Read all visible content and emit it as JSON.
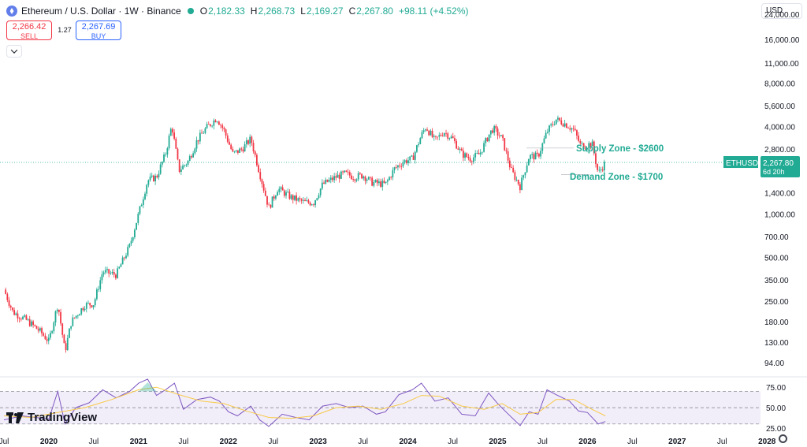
{
  "header": {
    "title": "Ethereum / U.S. Dollar · 1W · Binance",
    "open_label": "O",
    "open": "2,182.33",
    "high_label": "H",
    "high": "2,268.73",
    "low_label": "L",
    "low": "2,169.27",
    "close_label": "C",
    "close": "2,267.80",
    "change": "+98.11 (+4.52%)"
  },
  "trade": {
    "sell_price": "2,266.42",
    "sell_label": "SELL",
    "spread": "1.27",
    "buy_price": "2,267.69",
    "buy_label": "BUY"
  },
  "currency": "USD",
  "brand": "TradingView",
  "colors": {
    "up": "#22ab94",
    "down": "#f23645",
    "rsi": "#7e57c2",
    "rsi_ma": "#f7c948",
    "accent": "#22ab94"
  },
  "icons": {
    "logo": "ethereum-logo-icon",
    "dot": "status-dot-icon",
    "collapse": "chevron-down-icon",
    "settings": "gear-icon"
  },
  "chart_data": [
    {
      "type": "candlestick",
      "title": "Ethereum / U.S. Dollar · 1W · Binance",
      "scale": "log",
      "ylim": [
        75,
        30000
      ],
      "y_ticks": [
        24000,
        16000,
        11000,
        8000,
        5600,
        4000,
        2800,
        1400,
        1000,
        700,
        500,
        350,
        250,
        180,
        130,
        94
      ],
      "y_tick_labels": [
        "24,000.00",
        "16,000.00",
        "11,000.00",
        "8,000.00",
        "5,600.00",
        "4,000.00",
        "2,800.00",
        "1,400.00",
        "1,000.00",
        "700.00",
        "500.00",
        "350.00",
        "250.00",
        "180.00",
        "130.00",
        "94.00"
      ],
      "x_ticks": [
        "Jul",
        "2020",
        "Jul",
        "2021",
        "Jul",
        "2022",
        "Jul",
        "2023",
        "Jul",
        "2024",
        "Jul",
        "2025",
        "Jul",
        "2026",
        "Jul",
        "2027",
        "Jul",
        "2028"
      ],
      "xlim": [
        2019.5,
        2028.2
      ],
      "price_path": [
        [
          2019.5,
          300
        ],
        [
          2019.6,
          210
        ],
        [
          2019.75,
          185
        ],
        [
          2019.9,
          155
        ],
        [
          2020.0,
          132
        ],
        [
          2020.1,
          240
        ],
        [
          2020.18,
          112
        ],
        [
          2020.25,
          180
        ],
        [
          2020.4,
          235
        ],
        [
          2020.5,
          240
        ],
        [
          2020.6,
          400
        ],
        [
          2020.75,
          380
        ],
        [
          2020.9,
          600
        ],
        [
          2021.0,
          1000
        ],
        [
          2021.1,
          1700
        ],
        [
          2021.2,
          1800
        ],
        [
          2021.3,
          2600
        ],
        [
          2021.37,
          4100
        ],
        [
          2021.45,
          2000
        ],
        [
          2021.55,
          2300
        ],
        [
          2021.65,
          3200
        ],
        [
          2021.75,
          3900
        ],
        [
          2021.87,
          4600
        ],
        [
          2021.95,
          3800
        ],
        [
          2022.05,
          2600
        ],
        [
          2022.15,
          2800
        ],
        [
          2022.25,
          3300
        ],
        [
          2022.35,
          1900
        ],
        [
          2022.45,
          1100
        ],
        [
          2022.55,
          1500
        ],
        [
          2022.7,
          1300
        ],
        [
          2022.85,
          1200
        ],
        [
          2022.95,
          1200
        ],
        [
          2023.05,
          1600
        ],
        [
          2023.2,
          1800
        ],
        [
          2023.3,
          1900
        ],
        [
          2023.4,
          1800
        ],
        [
          2023.5,
          1850
        ],
        [
          2023.6,
          1650
        ],
        [
          2023.75,
          1600
        ],
        [
          2023.85,
          2050
        ],
        [
          2023.95,
          2300
        ],
        [
          2024.05,
          2400
        ],
        [
          2024.15,
          3500
        ],
        [
          2024.2,
          4000
        ],
        [
          2024.3,
          3200
        ],
        [
          2024.4,
          3700
        ],
        [
          2024.5,
          3300
        ],
        [
          2024.6,
          2600
        ],
        [
          2024.7,
          2400
        ],
        [
          2024.8,
          2600
        ],
        [
          2024.9,
          3500
        ],
        [
          2024.95,
          3900
        ],
        [
          2025.05,
          3300
        ],
        [
          2025.15,
          2000
        ],
        [
          2025.25,
          1550
        ],
        [
          2025.35,
          2500
        ],
        [
          2025.45,
          2500
        ],
        [
          2025.55,
          3700
        ],
        [
          2025.65,
          4500
        ],
        [
          2025.75,
          4200
        ],
        [
          2025.85,
          3800
        ],
        [
          2025.92,
          3000
        ],
        [
          2025.98,
          2950
        ],
        [
          2026.05,
          3100
        ],
        [
          2026.12,
          1900
        ],
        [
          2026.2,
          2267.8
        ]
      ],
      "last_price_label": {
        "symbol": "ETHUSD",
        "price": "2,267.80",
        "countdown": "6d 20h"
      },
      "annotations": [
        {
          "text": "Supply Zone - $2600",
          "price": 2600
        },
        {
          "text": "Demand Zone - $1700",
          "price": 1700
        }
      ]
    },
    {
      "type": "line",
      "name": "RSI",
      "ylim": [
        25,
        82
      ],
      "y_ticks": [
        75,
        50,
        25
      ],
      "y_tick_labels": [
        "75.00",
        "50.00",
        "25.00"
      ],
      "band": [
        30,
        70
      ],
      "rsi_path": [
        [
          2019.5,
          35
        ],
        [
          2019.7,
          40
        ],
        [
          2019.85,
          38
        ],
        [
          2020.0,
          36
        ],
        [
          2020.1,
          70
        ],
        [
          2020.18,
          30
        ],
        [
          2020.3,
          50
        ],
        [
          2020.45,
          56
        ],
        [
          2020.6,
          72
        ],
        [
          2020.75,
          62
        ],
        [
          2020.9,
          70
        ],
        [
          2021.0,
          80
        ],
        [
          2021.1,
          85
        ],
        [
          2021.2,
          65
        ],
        [
          2021.3,
          72
        ],
        [
          2021.4,
          80
        ],
        [
          2021.5,
          48
        ],
        [
          2021.65,
          60
        ],
        [
          2021.8,
          63
        ],
        [
          2021.9,
          58
        ],
        [
          2022.0,
          45
        ],
        [
          2022.1,
          40
        ],
        [
          2022.25,
          52
        ],
        [
          2022.35,
          35
        ],
        [
          2022.45,
          27
        ],
        [
          2022.6,
          42
        ],
        [
          2022.75,
          38
        ],
        [
          2022.9,
          35
        ],
        [
          2023.05,
          52
        ],
        [
          2023.2,
          55
        ],
        [
          2023.35,
          50
        ],
        [
          2023.5,
          52
        ],
        [
          2023.65,
          42
        ],
        [
          2023.75,
          45
        ],
        [
          2023.9,
          66
        ],
        [
          2024.05,
          72
        ],
        [
          2024.15,
          80
        ],
        [
          2024.3,
          58
        ],
        [
          2024.45,
          62
        ],
        [
          2024.6,
          42
        ],
        [
          2024.75,
          40
        ],
        [
          2024.9,
          68
        ],
        [
          2025.0,
          55
        ],
        [
          2025.1,
          44
        ],
        [
          2025.25,
          28
        ],
        [
          2025.35,
          45
        ],
        [
          2025.45,
          42
        ],
        [
          2025.55,
          72
        ],
        [
          2025.65,
          66
        ],
        [
          2025.8,
          58
        ],
        [
          2025.9,
          46
        ],
        [
          2026.0,
          44
        ],
        [
          2026.12,
          30
        ],
        [
          2026.2,
          33
        ]
      ],
      "ma_path": [
        [
          2019.5,
          40
        ],
        [
          2019.8,
          38
        ],
        [
          2020.1,
          44
        ],
        [
          2020.4,
          50
        ],
        [
          2020.7,
          60
        ],
        [
          2021.0,
          72
        ],
        [
          2021.2,
          75
        ],
        [
          2021.45,
          66
        ],
        [
          2021.7,
          58
        ],
        [
          2021.95,
          55
        ],
        [
          2022.2,
          46
        ],
        [
          2022.45,
          38
        ],
        [
          2022.7,
          37
        ],
        [
          2022.95,
          40
        ],
        [
          2023.2,
          50
        ],
        [
          2023.45,
          52
        ],
        [
          2023.7,
          48
        ],
        [
          2023.95,
          55
        ],
        [
          2024.15,
          65
        ],
        [
          2024.35,
          64
        ],
        [
          2024.6,
          52
        ],
        [
          2024.85,
          48
        ],
        [
          2025.05,
          55
        ],
        [
          2025.25,
          42
        ],
        [
          2025.45,
          44
        ],
        [
          2025.65,
          60
        ],
        [
          2025.85,
          60
        ],
        [
          2026.05,
          48
        ],
        [
          2026.2,
          40
        ]
      ]
    }
  ]
}
